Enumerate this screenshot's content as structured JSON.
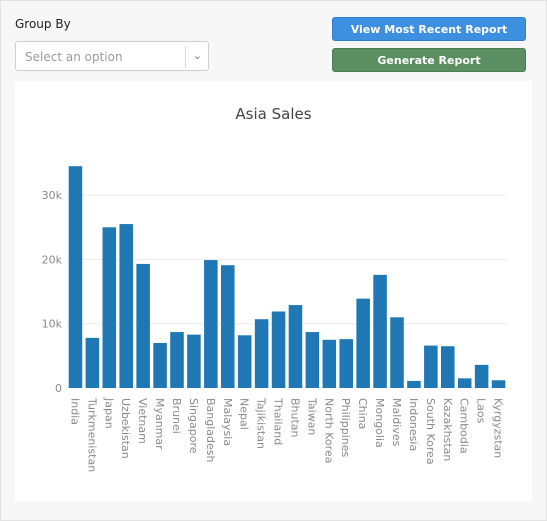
{
  "controls": {
    "group_by_label": "Group By",
    "select_placeholder": "Select an option",
    "view_report_label": "View Most Recent Report",
    "generate_report_label": "Generate Report"
  },
  "colors": {
    "bar": "#1f77b4",
    "blue_button": "#3d8fe0",
    "green_button": "#5b8f61"
  },
  "chart_data": {
    "type": "bar",
    "title": "Asia Sales",
    "xlabel": "",
    "ylabel": "",
    "ylim": [
      0,
      35000
    ],
    "yticks": [
      0,
      10000,
      20000,
      30000
    ],
    "ytick_labels": [
      "0",
      "10k",
      "20k",
      "30k"
    ],
    "grid": true,
    "categories": [
      "India",
      "Turkmenistan",
      "Japan",
      "Uzbekistan",
      "Vietnam",
      "Myanmar",
      "Brunei",
      "Singapore",
      "Bangladesh",
      "Malaysia",
      "Nepal",
      "Tajikistan",
      "Thailand",
      "Bhutan",
      "Taiwan",
      "North Korea",
      "Philippines",
      "China",
      "Mongolia",
      "Maldives",
      "Indonesia",
      "South Korea",
      "Kazakhstan",
      "Cambodia",
      "Laos",
      "Kyrgyzstan"
    ],
    "values": [
      34500,
      7800,
      25000,
      25500,
      19300,
      7000,
      8700,
      8300,
      19900,
      19100,
      8200,
      10700,
      11900,
      12900,
      8700,
      7500,
      7600,
      13900,
      17600,
      11000,
      1100,
      6600,
      6500,
      1500,
      3600,
      1200
    ]
  }
}
